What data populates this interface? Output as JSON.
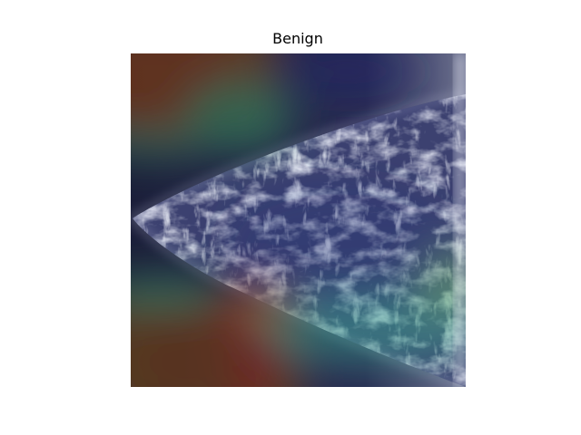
{
  "title": "Benign",
  "image": {
    "subject": "mammogram-with-heatmap-overlay",
    "colors": {
      "background": "#ffffff",
      "tissue_dark": "#1e2146",
      "tissue_light": "#d8dcef",
      "heat_hot": "#8e2a1c",
      "heat_warm": "#6f5a22",
      "heat_mid": "#3fa08a",
      "heat_cool": "#283a7c"
    }
  }
}
